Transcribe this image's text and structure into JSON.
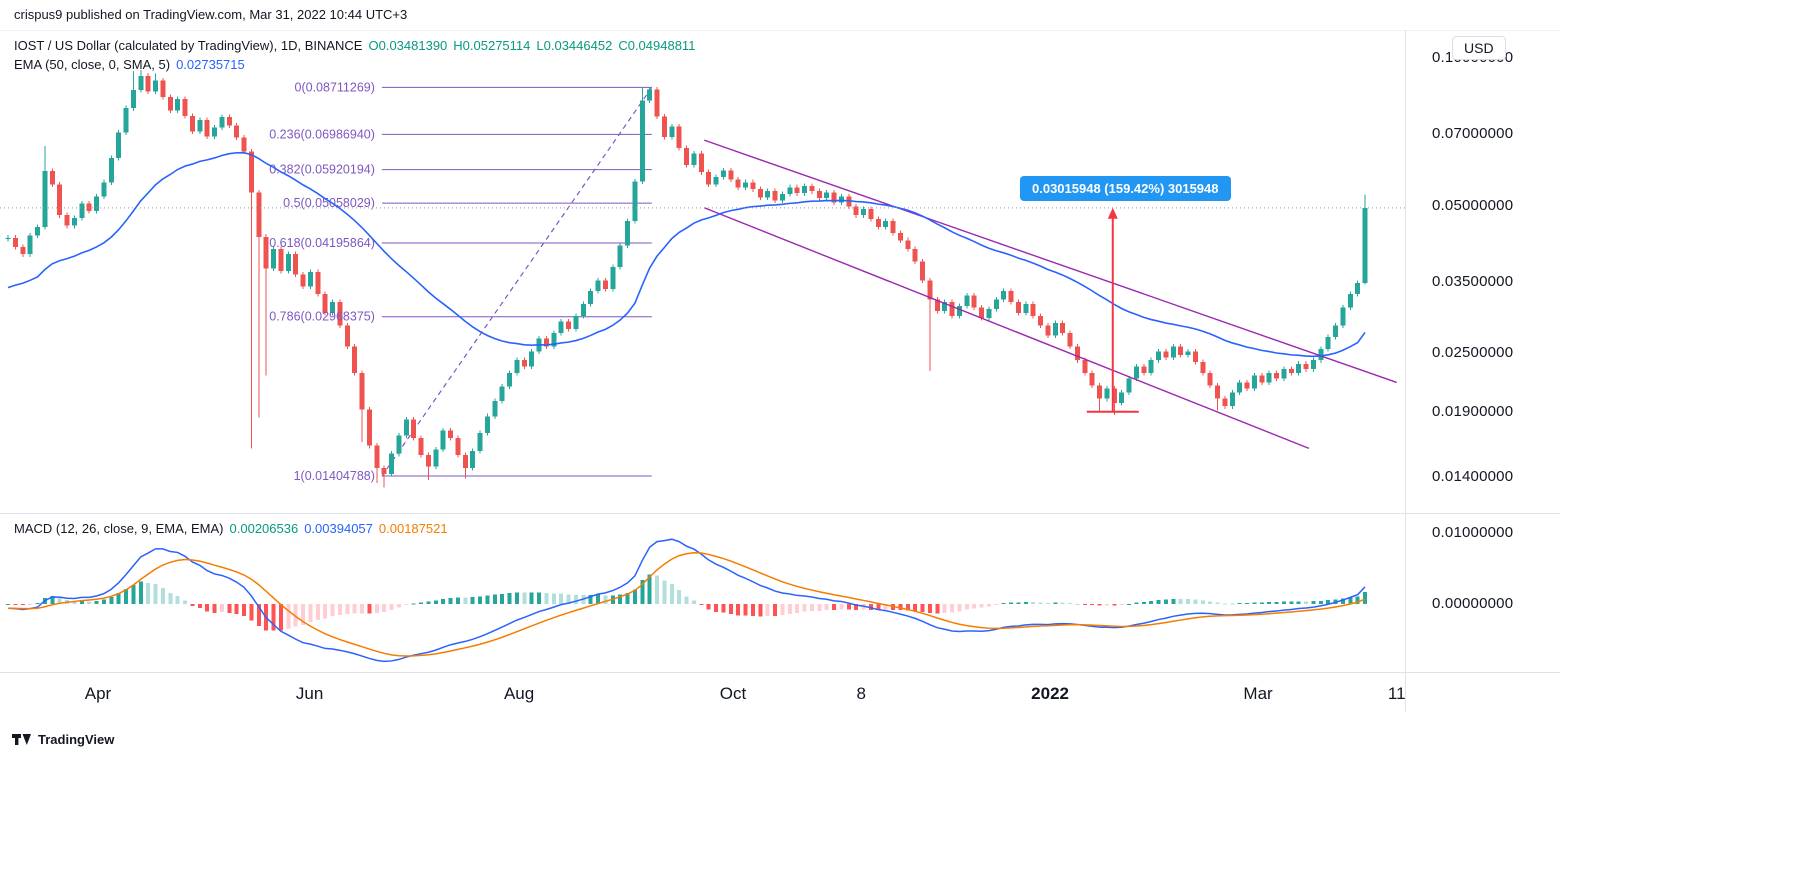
{
  "header": {
    "attribution": "crispus9 published on TradingView.com, Mar 31, 2022 10:44 UTC+3"
  },
  "legend": {
    "symbol_title": "IOST / US Dollar (calculated by TradingView), 1D, BINANCE",
    "ohlc_o": "O0.03481390",
    "ohlc_h": "H0.05275114",
    "ohlc_l": "L0.03446452",
    "ohlc_c": "C0.04948811",
    "ema_title": "EMA (50, close, 0, SMA, 5)",
    "ema_value": "0.02735715",
    "macd_title": "MACD (12, 26, close, 9, EMA, EMA)",
    "macd_hist_value": "0.00206536",
    "macd_value": "0.00394057",
    "macd_signal_value": "0.00187521"
  },
  "axis": {
    "currency_button": "USD",
    "price_ticks": [
      {
        "label": "0.10000000",
        "value": 0.1
      },
      {
        "label": "0.07000000",
        "value": 0.07
      },
      {
        "label": "0.05000000",
        "value": 0.05
      },
      {
        "label": "0.03500000",
        "value": 0.035
      },
      {
        "label": "0.02500000",
        "value": 0.025
      },
      {
        "label": "0.01900000",
        "value": 0.019
      },
      {
        "label": "0.01400000",
        "value": 0.014
      }
    ],
    "macd_ticks": [
      {
        "label": "0.01000000",
        "value": 0.01
      },
      {
        "label": "0.00000000",
        "value": 0.0
      }
    ],
    "time_ticks": [
      {
        "label": "Apr",
        "index": 12.2
      },
      {
        "label": "Jun",
        "index": 40.9
      },
      {
        "label": "Aug",
        "index": 69.3
      },
      {
        "label": "Oct",
        "index": 98.3
      },
      {
        "label": "8",
        "index": 115.7
      },
      {
        "label": "2022",
        "index": 141.3,
        "bold": true
      },
      {
        "label": "Mar",
        "index": 169.5
      },
      {
        "label": "11",
        "index": 188.3
      }
    ]
  },
  "footer": {
    "brand": "TradingView"
  },
  "colors": {
    "up": "#26a69a",
    "down": "#ef5350",
    "ema": "#2962ff",
    "macdLine": "#2962ff",
    "signalLine": "#f57c00",
    "histGrowUp": "#26a69a",
    "histFallUp": "#b2dfdb",
    "histFallDn": "#ff5252",
    "histGrowDn": "#ffcdd2",
    "fib": "#7e57c2",
    "channel": "#9c27b0",
    "measure": "#f23645",
    "calloutBg": "#2196f3",
    "priceLine": "#9598a1"
  },
  "chart_data": {
    "type": "candlestick",
    "scale": "log",
    "lower_pane": "MACD (12, 26, 9)",
    "closes": [
      0.043,
      0.0412,
      0.0398,
      0.0435,
      0.0452,
      0.0588,
      0.0552,
      0.0478,
      0.0455,
      0.0472,
      0.0505,
      0.0488,
      0.0522,
      0.0558,
      0.0625,
      0.0705,
      0.079,
      0.086,
      0.092,
      0.0855,
      0.09,
      0.0832,
      0.0782,
      0.0825,
      0.0762,
      0.0708,
      0.0748,
      0.0692,
      0.0722,
      0.0758,
      0.0728,
      0.0688,
      0.0645,
      0.0532,
      0.0432,
      0.0372,
      0.0408,
      0.0368,
      0.0398,
      0.0362,
      0.0342,
      0.0366,
      0.033,
      0.0302,
      0.0318,
      0.0285,
      0.0258,
      0.0228,
      0.0192,
      0.0162,
      0.0146,
      0.0142,
      0.0156,
      0.017,
      0.0183,
      0.0168,
      0.0155,
      0.0147,
      0.0159,
      0.0174,
      0.0168,
      0.0155,
      0.0146,
      0.0158,
      0.0172,
      0.0186,
      0.02,
      0.0214,
      0.0228,
      0.0242,
      0.0235,
      0.0252,
      0.0268,
      0.0258,
      0.0275,
      0.029,
      0.028,
      0.0298,
      0.0315,
      0.0335,
      0.0352,
      0.0338,
      0.0375,
      0.0415,
      0.0465,
      0.056,
      0.082,
      0.0862,
      0.076,
      0.069,
      0.0725,
      0.0655,
      0.0605,
      0.0638,
      0.0585,
      0.0552,
      0.0572,
      0.059,
      0.0565,
      0.0545,
      0.0558,
      0.054,
      0.052,
      0.0535,
      0.0512,
      0.0528,
      0.0545,
      0.053,
      0.0548,
      0.0535,
      0.0518,
      0.0532,
      0.0508,
      0.0522,
      0.0498,
      0.0478,
      0.0492,
      0.047,
      0.0452,
      0.0465,
      0.044,
      0.0425,
      0.0408,
      0.0385,
      0.0352,
      0.0322,
      0.0305,
      0.0318,
      0.0298,
      0.0312,
      0.0328,
      0.031,
      0.0295,
      0.0308,
      0.0322,
      0.0335,
      0.0318,
      0.0302,
      0.0315,
      0.0298,
      0.0285,
      0.0272,
      0.0288,
      0.0275,
      0.0258,
      0.0242,
      0.0228,
      0.0215,
      0.0202,
      0.0212,
      0.0198,
      0.0208,
      0.0222,
      0.0235,
      0.0228,
      0.0242,
      0.0252,
      0.0245,
      0.0258,
      0.0248,
      0.0252,
      0.024,
      0.0228,
      0.0215,
      0.0202,
      0.0195,
      0.0208,
      0.0218,
      0.0212,
      0.0225,
      0.0218,
      0.0228,
      0.0222,
      0.0232,
      0.0228,
      0.0238,
      0.0232,
      0.0242,
      0.0255,
      0.027,
      0.0285,
      0.031,
      0.033,
      0.0348,
      0.0495
    ],
    "wick_overrides": {
      "5": {
        "h": 0.0662
      },
      "17": {
        "h": 0.094
      },
      "18": {
        "h": 0.0945
      },
      "20": {
        "h": 0.093
      },
      "33": {
        "l": 0.016
      },
      "34": {
        "l": 0.0185
      },
      "35": {
        "l": 0.0225
      },
      "48": {
        "l": 0.0165
      },
      "50": {
        "l": 0.0136
      },
      "51": {
        "l": 0.0133
      },
      "57": {
        "l": 0.0138
      },
      "62": {
        "l": 0.0139
      },
      "86": {
        "h": 0.0871
      },
      "87": {
        "h": 0.0871
      },
      "125": {
        "l": 0.023
      },
      "148": {
        "l": 0.019
      },
      "150": {
        "l": 0.0187
      },
      "164": {
        "l": 0.0191
      },
      "184": {
        "h": 0.0527,
        "l": 0.0345
      }
    },
    "ema50_visible_start": 0.0335,
    "annotations": {
      "current_price_line": 0.04948811,
      "fib": {
        "start_index": 50.7,
        "end_index": 87.3,
        "trend_from_price": 0.01404788,
        "trend_to_price": 0.08711269,
        "levels": [
          {
            "label": "0(0.08711269)",
            "value": 0.08711269
          },
          {
            "label": "0.236(0.06986940)",
            "value": 0.0698694
          },
          {
            "label": "0.382(0.05920194)",
            "value": 0.05920194
          },
          {
            "label": "0.5(0.05058029)",
            "value": 0.05058029
          },
          {
            "label": "0.618(0.04195864)",
            "value": 0.04195864
          },
          {
            "label": "0.786(0.02968375)",
            "value": 0.02968375
          },
          {
            "label": "1(0.01404788)",
            "value": 0.01404788
          }
        ]
      },
      "channel": {
        "upper": {
          "from_index": 94.4,
          "from_price": 0.068,
          "to_index": 188.3,
          "to_price": 0.0218
        },
        "lower": {
          "from_index": 94.4,
          "from_price": 0.0495,
          "to_index": 176.4,
          "to_price": 0.016
        }
      },
      "measure": {
        "index": 149.8,
        "from_price": 0.019,
        "to_price": 0.0495,
        "label": "0.03015948 (159.42%) 3015948"
      }
    }
  }
}
